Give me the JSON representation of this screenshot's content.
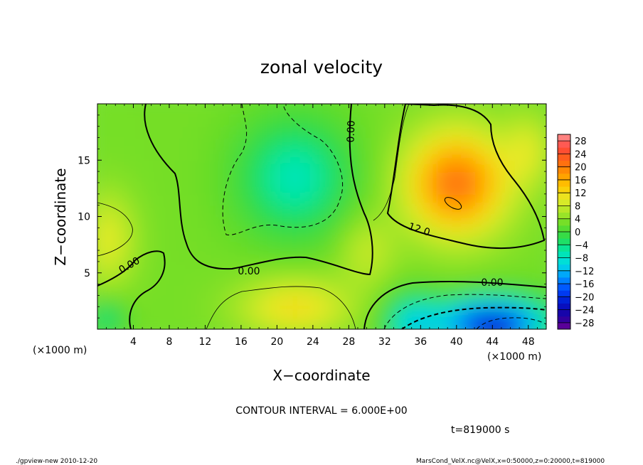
{
  "chart_data": {
    "type": "heatmap",
    "title": "zonal velocity",
    "xlabel": "X−coordinate",
    "ylabel": "Z−coordinate",
    "x_unit_label": "(×1000 m)",
    "y_unit_label": "(×1000 m)",
    "xlim": [
      0,
      50
    ],
    "ylim": [
      0,
      20
    ],
    "x_ticks": [
      4,
      8,
      12,
      16,
      20,
      24,
      28,
      32,
      36,
      40,
      44,
      48
    ],
    "y_ticks": [
      5,
      10,
      15
    ],
    "colorbar": {
      "ticks": [
        28,
        24,
        20,
        16,
        12,
        8,
        4,
        0,
        -4,
        -8,
        -12,
        -16,
        -20,
        -24,
        -28
      ],
      "labels": [
        "28",
        "24",
        "20",
        "16",
        "12",
        "8",
        "4",
        "0",
        "−4",
        "−8",
        "−12",
        "−16",
        "−20",
        "−24",
        "−28"
      ],
      "range": [
        -30,
        30
      ]
    },
    "contour_interval": 6.0,
    "contour_labels": [
      "0.00",
      "0.00",
      "0.00",
      "12.0",
      "0.00"
    ],
    "features": [
      {
        "name": "positive maximum",
        "x": 40,
        "z": 13,
        "value": 18
      },
      {
        "name": "negative minimum",
        "x": 44,
        "z": 0.5,
        "value": -24
      },
      {
        "name": "weak negative region",
        "x": 22,
        "z": 13,
        "value": -8
      }
    ]
  },
  "annotations": {
    "contour_interval_text": "CONTOUR INTERVAL = 6.000E+00",
    "time_text": "t=819000 s"
  },
  "footer": {
    "left": "./gpview-new 2010-12-20",
    "right": "MarsCond_VelX.nc@VelX,x=0:50000,z=0:20000,t=819000"
  }
}
